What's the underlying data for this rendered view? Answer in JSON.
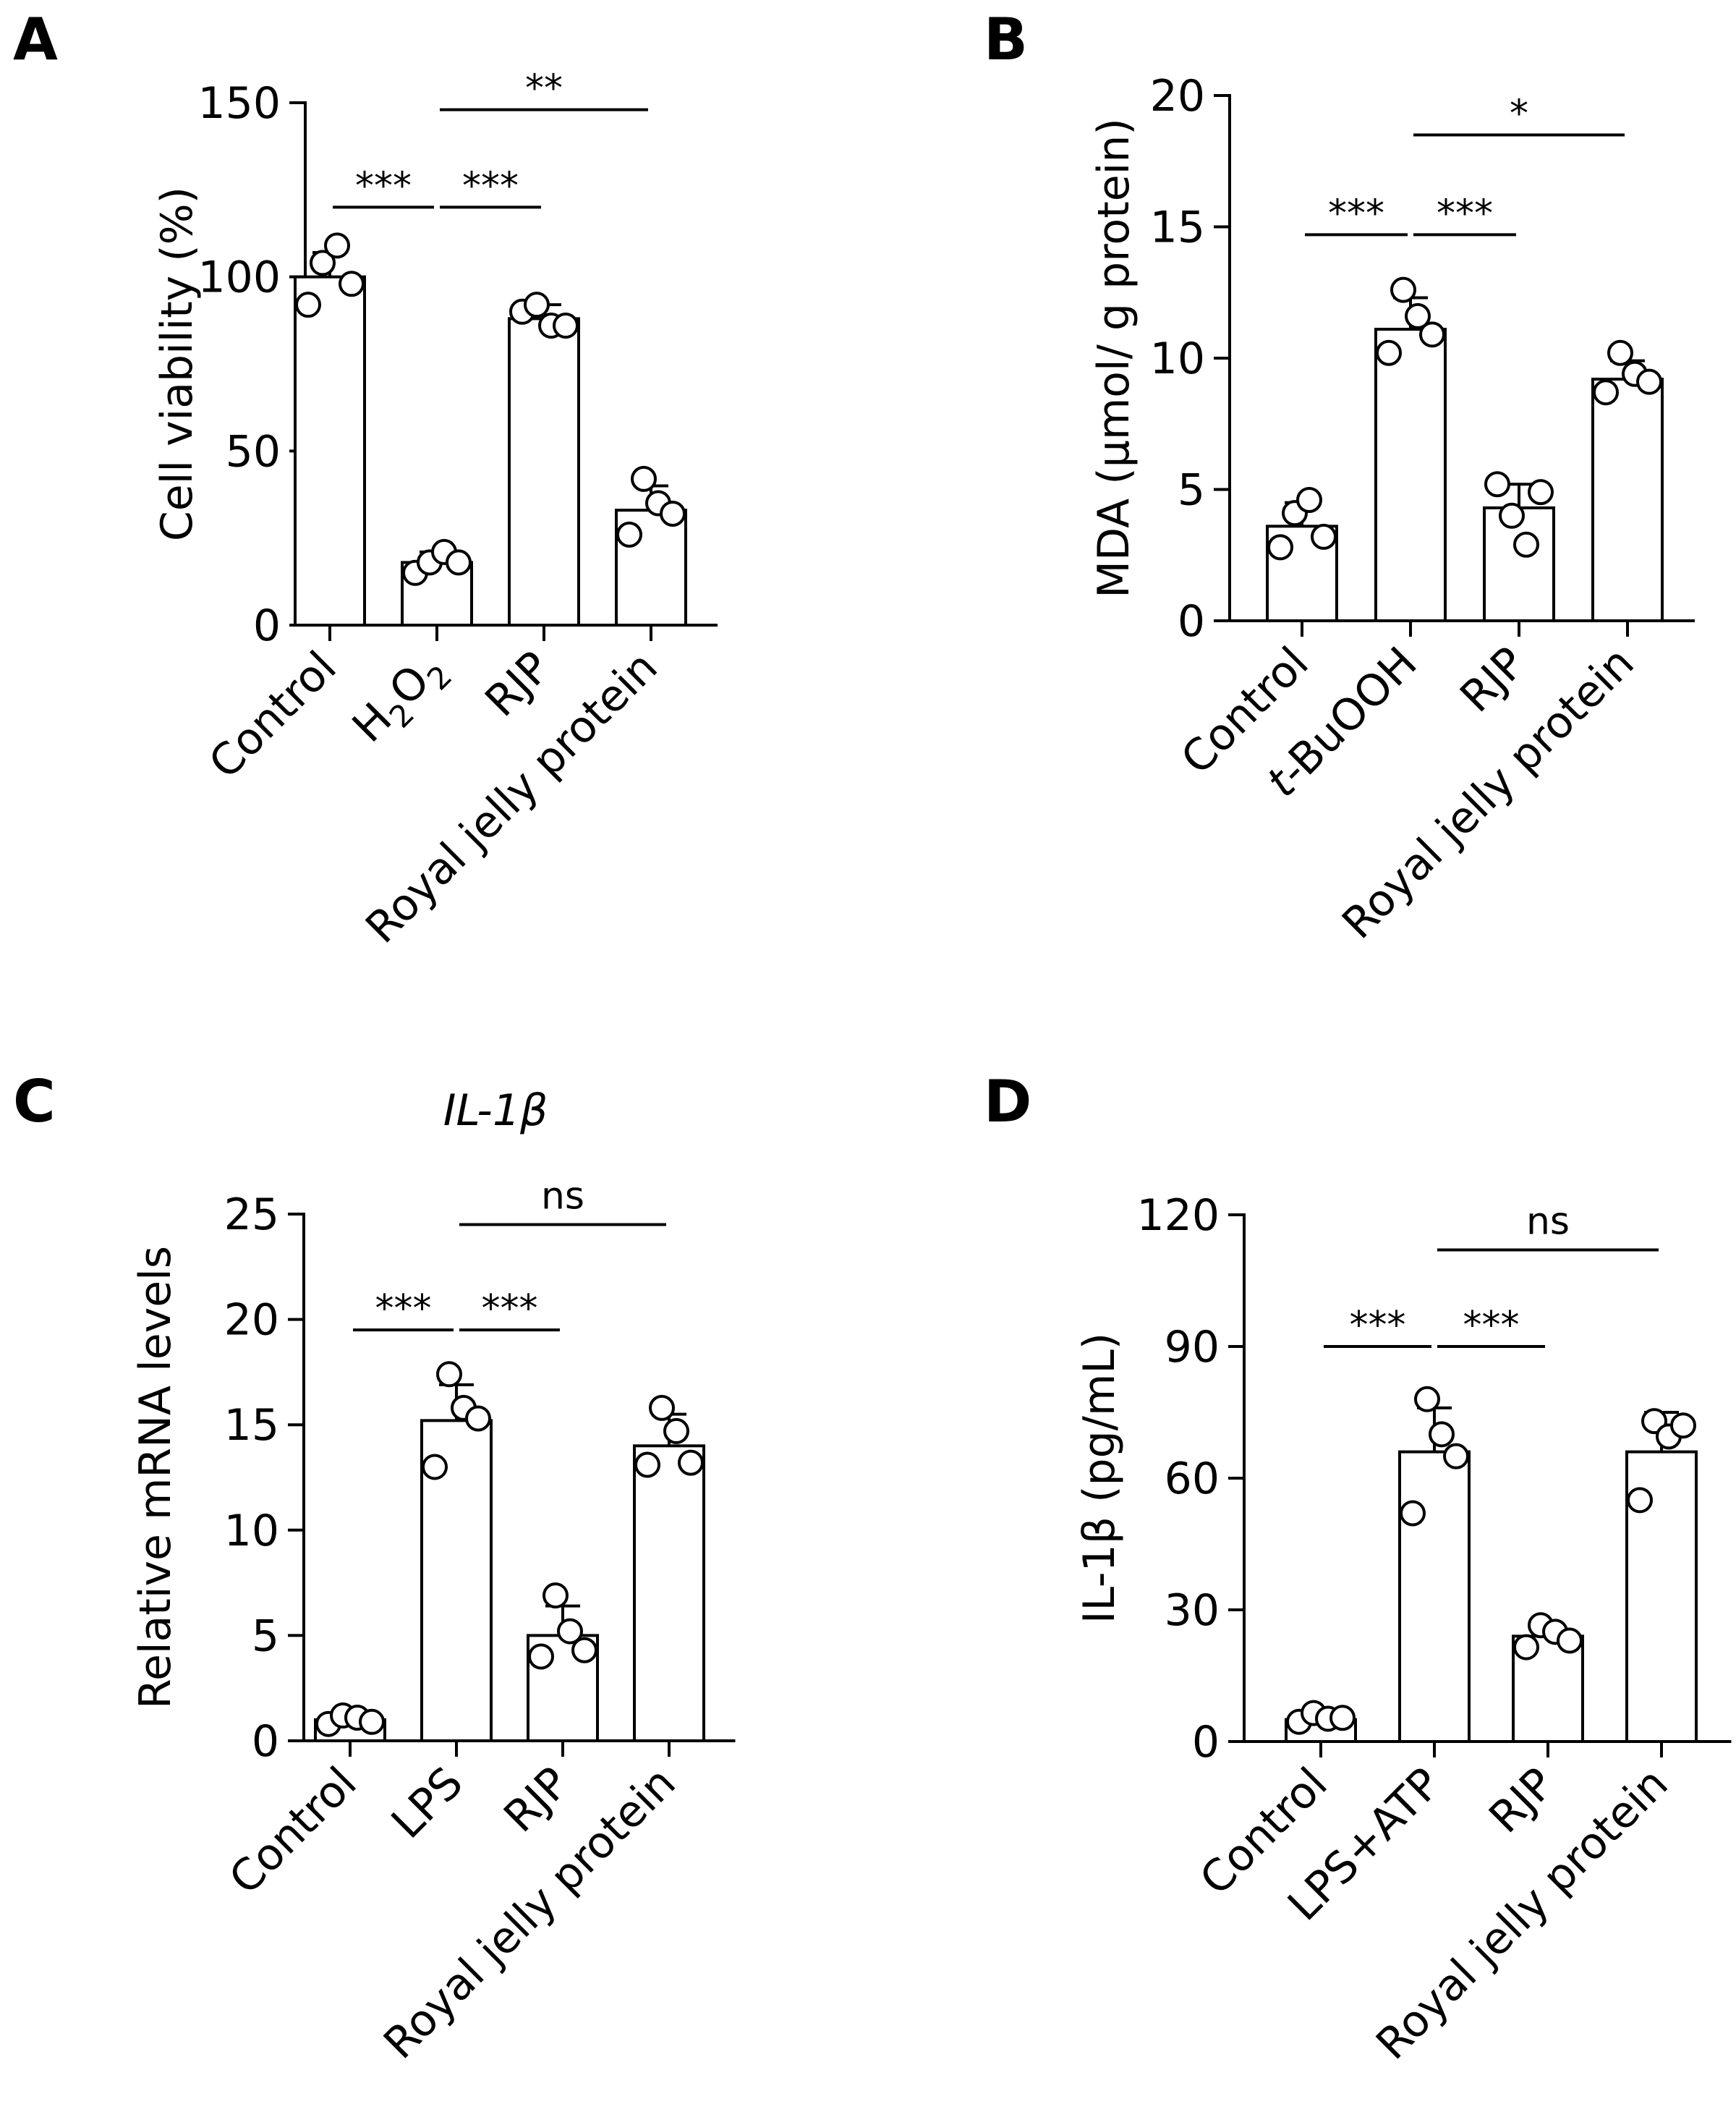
{
  "chart_data": [
    {
      "id": "A",
      "type": "bar",
      "panel_label": "A",
      "title": "",
      "ylabel": "Cell viability (%)",
      "ylim": [
        0,
        150
      ],
      "yticks": [
        0,
        50,
        100,
        150
      ],
      "categories": [
        "Control",
        "H2O2",
        "RJP",
        "Royal jelly protein"
      ],
      "category_label_parts": [
        [
          {
            "text": "Control"
          }
        ],
        [
          {
            "text": "H"
          },
          {
            "text": "2",
            "sub": true
          },
          {
            "text": "O"
          },
          {
            "text": "2",
            "sub": true
          }
        ],
        [
          {
            "text": "RJP"
          }
        ],
        [
          {
            "text": "Royal jelly protein"
          }
        ]
      ],
      "values": [
        100,
        18,
        88,
        33
      ],
      "errors": [
        7,
        3,
        4,
        7
      ],
      "points": [
        [
          92,
          104,
          109,
          98
        ],
        [
          15,
          18,
          21,
          18
        ],
        [
          90,
          92,
          86,
          86
        ],
        [
          26,
          42,
          35,
          32
        ]
      ],
      "significance": [
        {
          "from": 0,
          "to": 1,
          "label": "***",
          "y": 120
        },
        {
          "from": 1,
          "to": 2,
          "label": "***",
          "y": 120
        },
        {
          "from": 1,
          "to": 3,
          "label": "**",
          "y": 148
        }
      ]
    },
    {
      "id": "B",
      "type": "bar",
      "panel_label": "B",
      "title": "",
      "ylabel": "MDA (µmol/ g protein)",
      "ylim": [
        0,
        20
      ],
      "yticks": [
        0,
        5,
        10,
        15,
        20
      ],
      "categories": [
        "Control",
        "t-BuOOH",
        "RJP",
        "Royal jelly protein"
      ],
      "category_label_parts": [
        [
          {
            "text": "Control"
          }
        ],
        [
          {
            "text": "t",
            "italic": true
          },
          {
            "text": "-BuOOH"
          }
        ],
        [
          {
            "text": "RJP"
          }
        ],
        [
          {
            "text": "Royal jelly protein"
          }
        ]
      ],
      "values": [
        3.6,
        11.1,
        4.3,
        9.2
      ],
      "errors": [
        0.9,
        1.2,
        0.9,
        0.7
      ],
      "points": [
        [
          2.8,
          4.1,
          4.6,
          3.2
        ],
        [
          10.2,
          12.6,
          11.6,
          10.9
        ],
        [
          5.2,
          4.0,
          2.9,
          4.9
        ],
        [
          8.7,
          10.2,
          9.4,
          9.1
        ]
      ],
      "significance": [
        {
          "from": 0,
          "to": 1,
          "label": "***",
          "y": 14.7
        },
        {
          "from": 1,
          "to": 2,
          "label": "***",
          "y": 14.7
        },
        {
          "from": 1,
          "to": 3,
          "label": "*",
          "y": 18.5
        }
      ]
    },
    {
      "id": "C",
      "type": "bar",
      "panel_label": "C",
      "title": "IL-1β",
      "ylabel": "Relative mRNA levels",
      "ylim": [
        0,
        25
      ],
      "yticks": [
        0,
        5,
        10,
        15,
        20,
        25
      ],
      "categories": [
        "Control",
        "LPS",
        "RJP",
        "Royal jelly protein"
      ],
      "category_label_parts": [
        [
          {
            "text": "Control"
          }
        ],
        [
          {
            "text": "LPS"
          }
        ],
        [
          {
            "text": "RJP"
          }
        ],
        [
          {
            "text": "Royal jelly protein"
          }
        ]
      ],
      "values": [
        1.0,
        15.2,
        5.0,
        14.0
      ],
      "errors": [
        0.3,
        1.7,
        1.4,
        1.5
      ],
      "points": [
        [
          0.8,
          1.2,
          1.1,
          0.9
        ],
        [
          13.0,
          17.4,
          15.8,
          15.3
        ],
        [
          4.0,
          6.9,
          5.2,
          4.3
        ],
        [
          13.1,
          15.8,
          14.7,
          13.2
        ]
      ],
      "significance": [
        {
          "from": 0,
          "to": 1,
          "label": "***",
          "y": 19.5
        },
        {
          "from": 1,
          "to": 2,
          "label": "***",
          "y": 19.5
        },
        {
          "from": 1,
          "to": 3,
          "label": "ns",
          "y": 24.5
        }
      ]
    },
    {
      "id": "D",
      "type": "bar",
      "panel_label": "D",
      "title": "",
      "ylabel": "IL-1β (pg/mL)",
      "ylim": [
        0,
        120
      ],
      "yticks": [
        0,
        30,
        60,
        90,
        120
      ],
      "categories": [
        "Control",
        "LPS+ATP",
        "RJP",
        "Royal jelly protein"
      ],
      "category_label_parts": [
        [
          {
            "text": "Control"
          }
        ],
        [
          {
            "text": "LPS+ATP"
          }
        ],
        [
          {
            "text": "RJP"
          }
        ],
        [
          {
            "text": "Royal jelly protein"
          }
        ]
      ],
      "values": [
        5,
        66,
        24,
        66
      ],
      "errors": [
        1.5,
        10,
        2,
        9
      ],
      "points": [
        [
          4.5,
          6.5,
          5.2,
          5.4
        ],
        [
          52,
          78,
          70,
          65
        ],
        [
          21.5,
          26.5,
          25,
          23
        ],
        [
          55,
          73,
          69.5,
          72
        ]
      ],
      "significance": [
        {
          "from": 0,
          "to": 1,
          "label": "***",
          "y": 90
        },
        {
          "from": 1,
          "to": 2,
          "label": "***",
          "y": 90
        },
        {
          "from": 1,
          "to": 3,
          "label": "ns",
          "y": 112
        }
      ]
    }
  ]
}
